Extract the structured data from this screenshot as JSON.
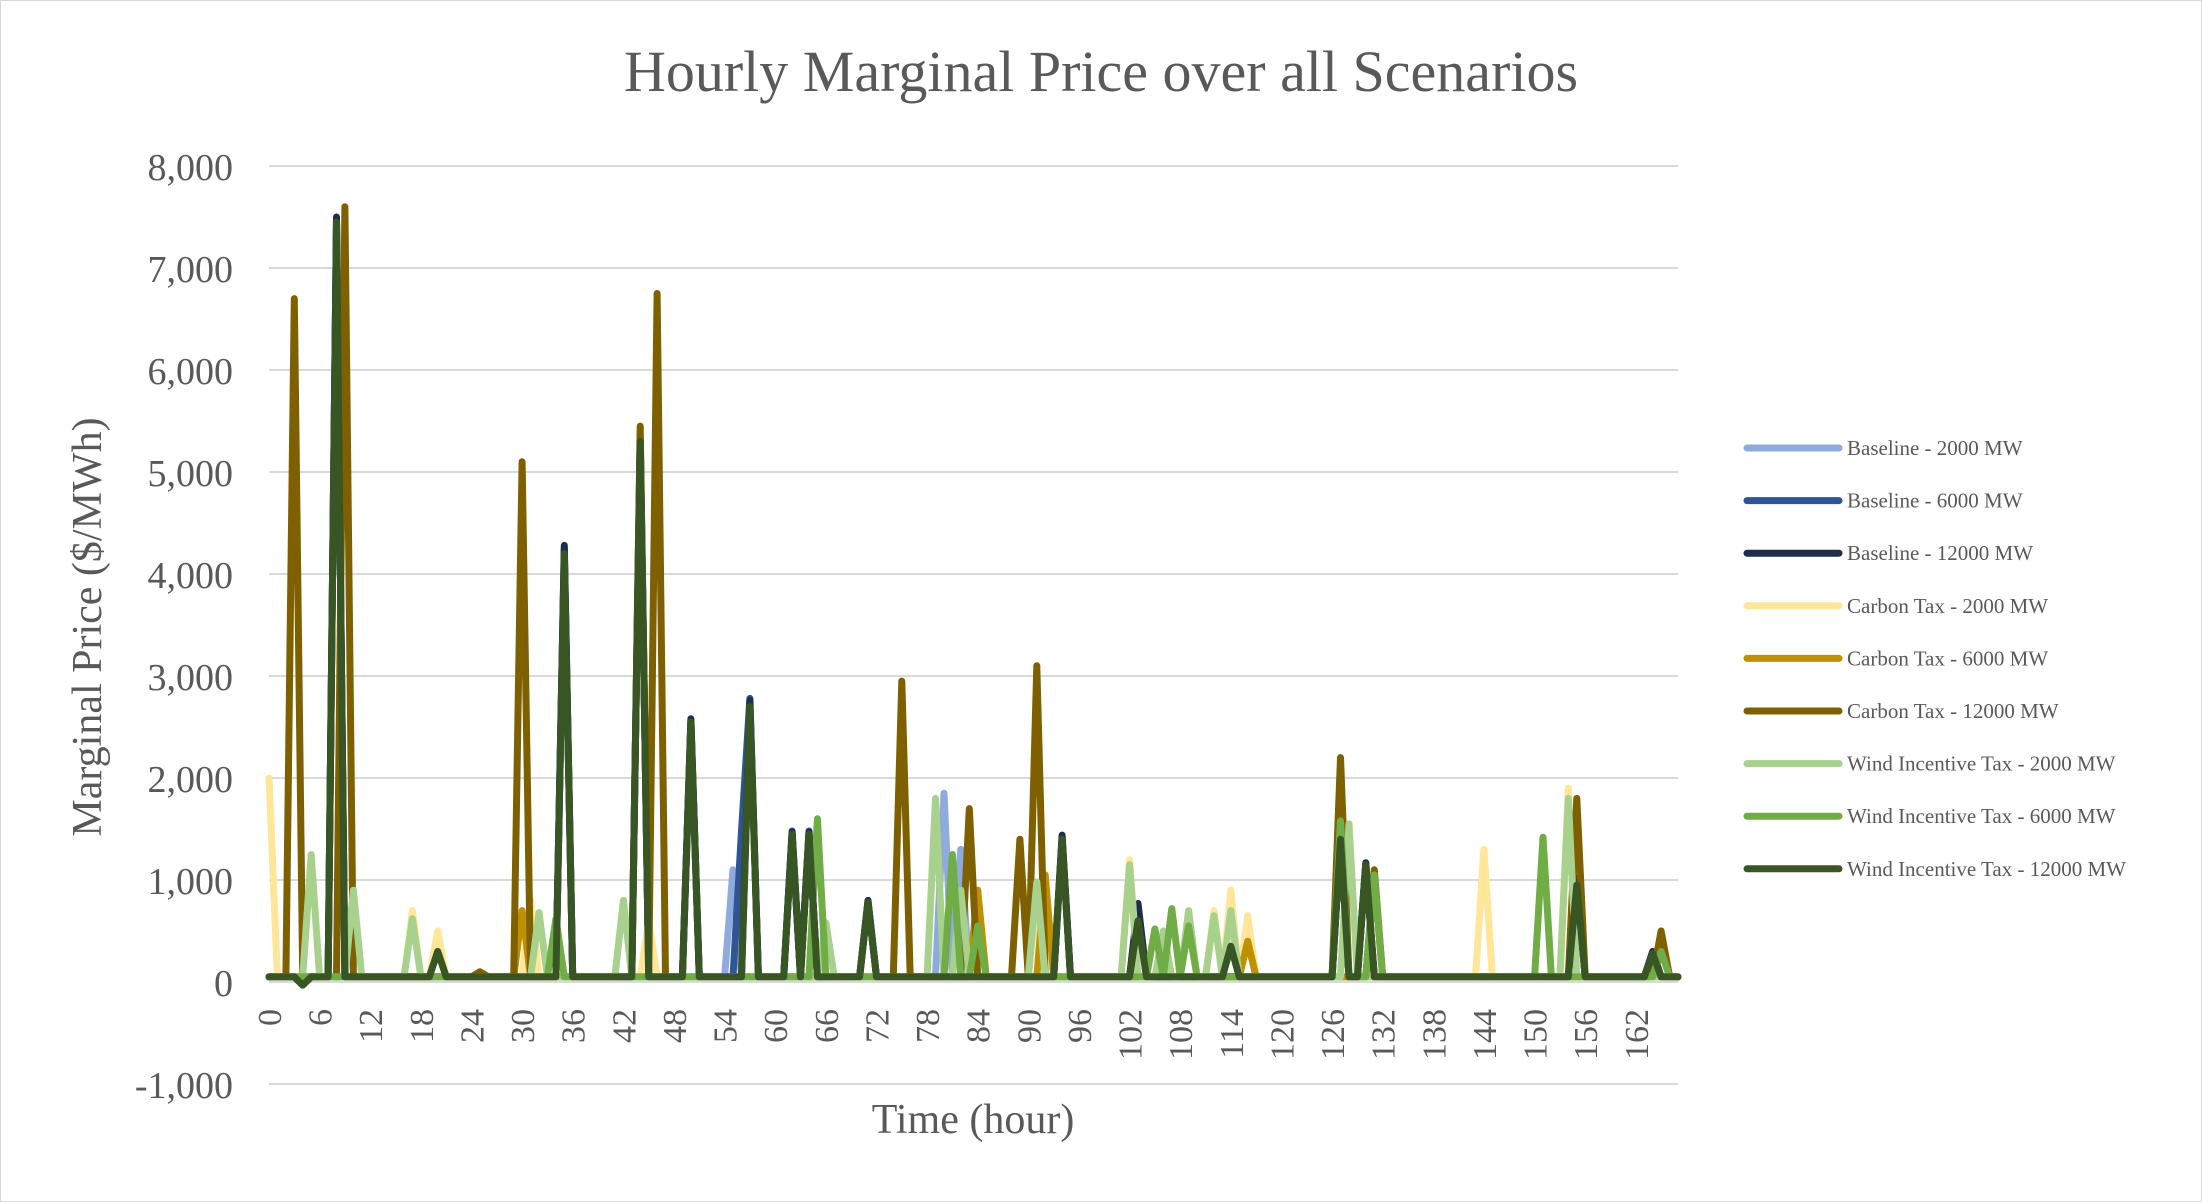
{
  "chart_data": {
    "type": "line",
    "title": "Hourly Marginal Price over all Scenarios",
    "xlabel": "Time (hour)",
    "ylabel": "Marginal Price ($/MWh)",
    "ylim": [
      -1000,
      8000
    ],
    "xlim": [
      0,
      167
    ],
    "y_ticks": [
      -1000,
      0,
      1000,
      2000,
      3000,
      4000,
      5000,
      6000,
      7000,
      8000
    ],
    "y_tick_labels": [
      "-1,000",
      "0",
      "1,000",
      "2,000",
      "3,000",
      "4,000",
      "5,000",
      "6,000",
      "7,000",
      "8,000"
    ],
    "x_ticks": [
      0,
      6,
      12,
      18,
      24,
      30,
      36,
      42,
      48,
      54,
      60,
      66,
      72,
      78,
      84,
      90,
      96,
      102,
      108,
      114,
      120,
      126,
      132,
      138,
      144,
      150,
      156,
      162
    ],
    "x_tick_labels": [
      "0",
      "6",
      "12",
      "18",
      "24",
      "30",
      "36",
      "42",
      "48",
      "54",
      "60",
      "66",
      "72",
      "78",
      "84",
      "90",
      "96",
      "102",
      "108",
      "114",
      "120",
      "126",
      "132",
      "138",
      "144",
      "150",
      "156",
      "162"
    ],
    "grid": true,
    "legend_position": "right",
    "baseline_value": 50,
    "series": [
      {
        "name": "Baseline - 2000 MW",
        "color": "#8faadc",
        "peaks": [
          [
            8,
            7450
          ],
          [
            35,
            4200
          ],
          [
            44,
            5300
          ],
          [
            50,
            2550
          ],
          [
            55,
            1100
          ],
          [
            57,
            2700
          ],
          [
            62,
            1450
          ],
          [
            64,
            1450
          ],
          [
            71,
            780
          ],
          [
            80,
            1850
          ],
          [
            82,
            1300
          ],
          [
            94,
            1400
          ],
          [
            103,
            700
          ],
          [
            127,
            1400
          ],
          [
            130,
            1150
          ],
          [
            155,
            950
          ],
          [
            164,
            280
          ]
        ]
      },
      {
        "name": "Baseline - 6000 MW",
        "color": "#2f5597",
        "peaks": [
          [
            8,
            7480
          ],
          [
            35,
            4250
          ],
          [
            44,
            5320
          ],
          [
            50,
            2560
          ],
          [
            56,
            1480
          ],
          [
            57,
            2780
          ],
          [
            62,
            1480
          ],
          [
            64,
            1480
          ],
          [
            71,
            790
          ],
          [
            94,
            1420
          ],
          [
            103,
            750
          ],
          [
            127,
            1420
          ],
          [
            130,
            1160
          ],
          [
            155,
            1000
          ],
          [
            164,
            290
          ]
        ]
      },
      {
        "name": "Baseline - 12000 MW",
        "color": "#1f2d4d",
        "peaks": [
          [
            8,
            7500
          ],
          [
            35,
            4280
          ],
          [
            44,
            5340
          ],
          [
            50,
            2580
          ],
          [
            57,
            2760
          ],
          [
            62,
            1470
          ],
          [
            64,
            1470
          ],
          [
            71,
            800
          ],
          [
            94,
            1440
          ],
          [
            103,
            770
          ],
          [
            127,
            1430
          ],
          [
            130,
            1170
          ],
          [
            155,
            1020
          ],
          [
            164,
            300
          ]
        ]
      },
      {
        "name": "Carbon Tax - 2000 MW",
        "color": "#ffe699",
        "peaks": [
          [
            0,
            2000
          ],
          [
            17,
            700
          ],
          [
            20,
            500
          ],
          [
            31,
            800
          ],
          [
            45,
            600
          ],
          [
            91,
            800
          ],
          [
            102,
            1200
          ],
          [
            112,
            700
          ],
          [
            114,
            900
          ],
          [
            116,
            650
          ],
          [
            144,
            1300
          ],
          [
            154,
            1900
          ]
        ]
      },
      {
        "name": "Carbon Tax - 6000 MW",
        "color": "#bf9000",
        "peaks": [
          [
            30,
            700
          ],
          [
            84,
            900
          ],
          [
            92,
            1050
          ],
          [
            116,
            400
          ],
          [
            131,
            1000
          ],
          [
            165,
            480
          ]
        ]
      },
      {
        "name": "Carbon Tax - 12000 MW",
        "color": "#7f6000",
        "peaks": [
          [
            3,
            6700
          ],
          [
            9,
            7600
          ],
          [
            25,
            100
          ],
          [
            30,
            5100
          ],
          [
            44,
            5450
          ],
          [
            46,
            6750
          ],
          [
            75,
            2950
          ],
          [
            83,
            1700
          ],
          [
            89,
            1400
          ],
          [
            91,
            3100
          ],
          [
            127,
            2200
          ],
          [
            131,
            1100
          ],
          [
            155,
            1800
          ],
          [
            165,
            500
          ]
        ]
      },
      {
        "name": "Wind Incentive Tax - 2000 MW",
        "color": "#a9d18e",
        "peaks": [
          [
            5,
            1250
          ],
          [
            10,
            900
          ],
          [
            17,
            620
          ],
          [
            32,
            680
          ],
          [
            42,
            800
          ],
          [
            66,
            580
          ],
          [
            79,
            1800
          ],
          [
            82,
            900
          ],
          [
            91,
            980
          ],
          [
            102,
            1150
          ],
          [
            106,
            500
          ],
          [
            109,
            700
          ],
          [
            112,
            650
          ],
          [
            114,
            700
          ],
          [
            128,
            1550
          ],
          [
            154,
            1800
          ]
        ]
      },
      {
        "name": "Wind Incentive Tax - 6000 MW",
        "color": "#70ad47",
        "peaks": [
          [
            34,
            620
          ],
          [
            65,
            1600
          ],
          [
            81,
            1250
          ],
          [
            84,
            550
          ],
          [
            105,
            520
          ],
          [
            107,
            720
          ],
          [
            109,
            550
          ],
          [
            127,
            1580
          ],
          [
            131,
            1050
          ],
          [
            151,
            1420
          ],
          [
            165,
            300
          ]
        ]
      },
      {
        "name": "Wind Incentive Tax - 12000 MW",
        "color": "#375623",
        "peaks": [
          [
            8,
            7450
          ],
          [
            20,
            300
          ],
          [
            35,
            4200
          ],
          [
            44,
            5300
          ],
          [
            50,
            2550
          ],
          [
            57,
            2700
          ],
          [
            62,
            1450
          ],
          [
            64,
            1450
          ],
          [
            71,
            780
          ],
          [
            94,
            1400
          ],
          [
            103,
            600
          ],
          [
            114,
            350
          ],
          [
            127,
            1400
          ],
          [
            130,
            1150
          ],
          [
            155,
            950
          ],
          [
            164,
            280
          ]
        ]
      }
    ]
  }
}
